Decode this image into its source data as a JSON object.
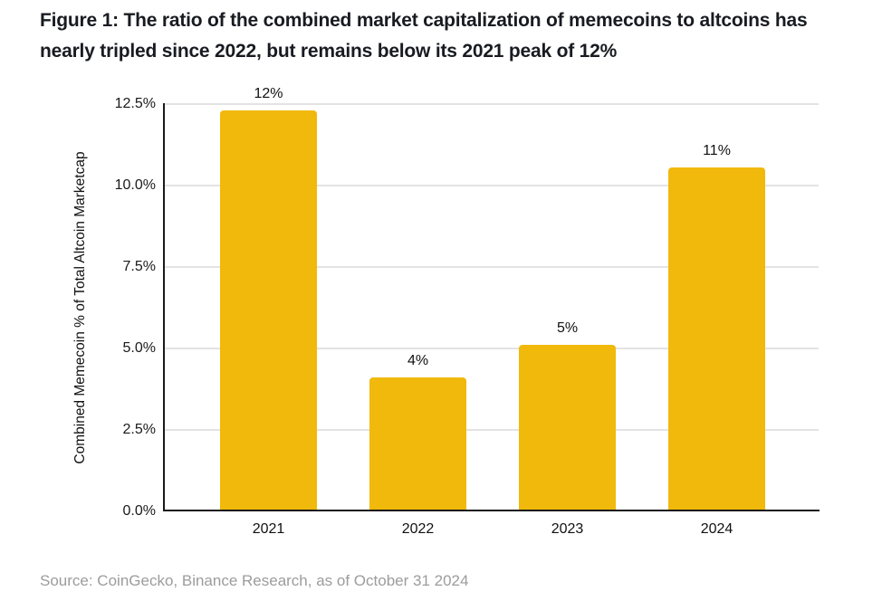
{
  "figure": {
    "title_line1": "Figure 1: The ratio of the combined market capitalization of memecoins to altcoins has",
    "title_line2": "nearly tripled since 2022, but remains below its 2021 peak of 12%",
    "source": "Source: CoinGecko, Binance Research, as of October 31 2024"
  },
  "colors": {
    "bar": "#f0b90b",
    "title_text": "#181b21",
    "axis_text": "#111111",
    "gridline": "#e3e3e3",
    "axis_line": "#1a1a1a",
    "source_text": "#9c9c9c",
    "background": "#ffffff"
  },
  "chart_data": {
    "type": "bar",
    "title": "Figure 1: The ratio of the combined market capitalization of memecoins to altcoins has nearly tripled since 2022, but remains below its 2021 peak of 12%",
    "categories": [
      "2021",
      "2022",
      "2023",
      "2024"
    ],
    "values": [
      12.3,
      4.1,
      5.1,
      10.55
    ],
    "bar_labels": [
      "12%",
      "4%",
      "5%",
      "11%"
    ],
    "xlabel": "",
    "ylabel": "Combined Memecoin % of Total Altcoin Marketcap",
    "ylim": [
      0,
      12.5
    ],
    "yticks": [
      0,
      2.5,
      5,
      7.5,
      10,
      12.5
    ],
    "ytick_labels": [
      "0.0%",
      "2.5%",
      "5.0%",
      "7.5%",
      "10.0%",
      "12.5%"
    ],
    "grid": true,
    "legend": "none",
    "source": "Source: CoinGecko, Binance Research, as of October 31 2024"
  }
}
